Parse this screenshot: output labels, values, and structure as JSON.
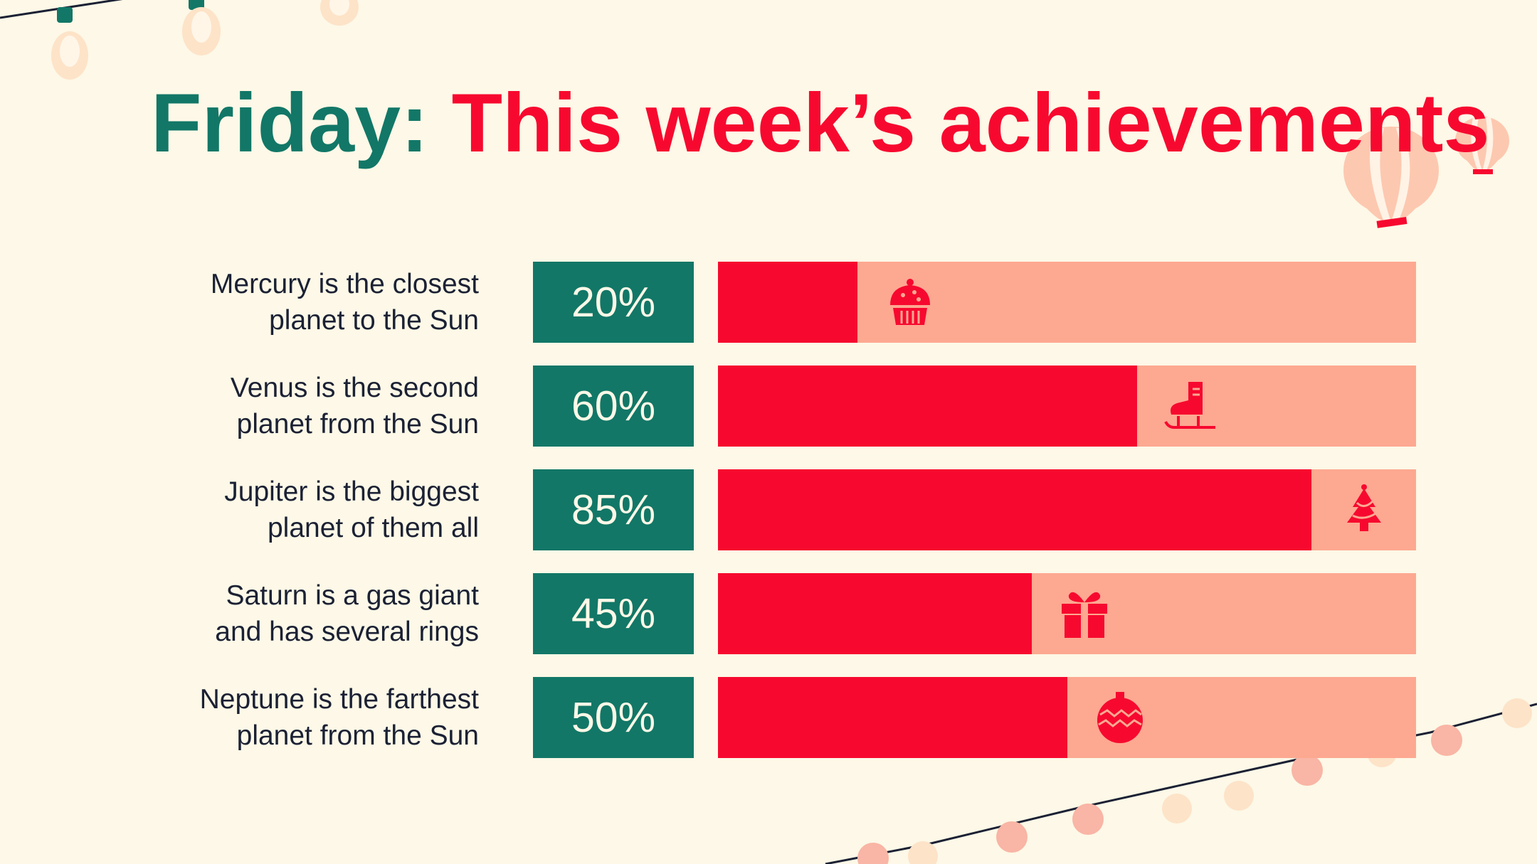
{
  "title": {
    "part1": "Friday:",
    "part2": "This week’s achievements"
  },
  "colors": {
    "background": "#fdf8e7",
    "teal": "#127767",
    "red": "#f7092f",
    "salmon": "#fda891",
    "text": "#1b2134"
  },
  "chart_data": {
    "type": "bar",
    "orientation": "horizontal",
    "title": "Friday: This week’s achievements",
    "xlim": [
      0,
      100
    ],
    "unit": "%",
    "categories": [
      [
        "Mercury is the closest",
        "planet to the Sun"
      ],
      [
        "Venus is the second",
        "planet from the Sun"
      ],
      [
        "Jupiter is the biggest",
        "planet of them all"
      ],
      [
        "Saturn is a gas giant",
        "and has several rings"
      ],
      [
        "Neptune is the farthest",
        "planet from the Sun"
      ]
    ],
    "values": [
      20,
      60,
      85,
      45,
      50
    ],
    "labels": [
      "20%",
      "60%",
      "85%",
      "45%",
      "50%"
    ],
    "icons": [
      "cupcake-icon",
      "ice-skate-icon",
      "christmas-tree-icon",
      "gift-icon",
      "ornament-icon"
    ]
  }
}
